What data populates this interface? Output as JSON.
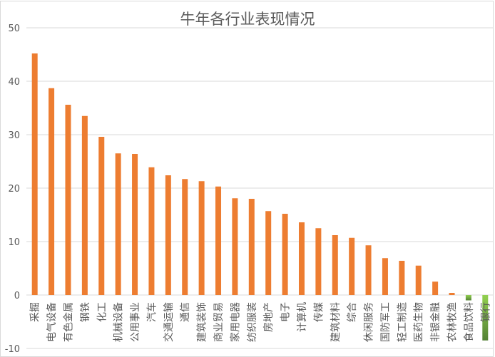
{
  "chart_data": {
    "type": "bar",
    "title": "牛年各行业表现情况",
    "xlabel": "",
    "ylabel": "",
    "ylim": [
      -10,
      50
    ],
    "yticks": [
      50,
      40,
      30,
      20,
      10,
      0,
      -10
    ],
    "grid": true,
    "legend": null,
    "categories": [
      "采掘",
      "电气设备",
      "有色金属",
      "钢铁",
      "化工",
      "机械设备",
      "公用事业",
      "汽车",
      "交通运输",
      "通信",
      "建筑装饰",
      "商业贸易",
      "家用电器",
      "纺织服装",
      "房地产",
      "电子",
      "计算机",
      "传媒",
      "建筑材料",
      "综合",
      "休闲服务",
      "国防军工",
      "轻工制造",
      "医药生物",
      "非银金融",
      "农林牧渔",
      "食品饮料",
      "银行"
    ],
    "values": [
      45.2,
      38.7,
      35.6,
      33.5,
      29.6,
      26.5,
      26.4,
      23.9,
      22.4,
      21.7,
      21.3,
      20.3,
      18.1,
      18.0,
      15.7,
      15.2,
      13.6,
      12.5,
      11.2,
      10.7,
      9.3,
      6.9,
      6.4,
      5.5,
      2.5,
      0.4,
      -1.0,
      -8.5
    ],
    "colors": {
      "positive": "#ED7D31",
      "negative_top": "#92D050",
      "negative_bottom": "#548235",
      "grid": "#d9d9d9",
      "text": "#595959"
    }
  }
}
